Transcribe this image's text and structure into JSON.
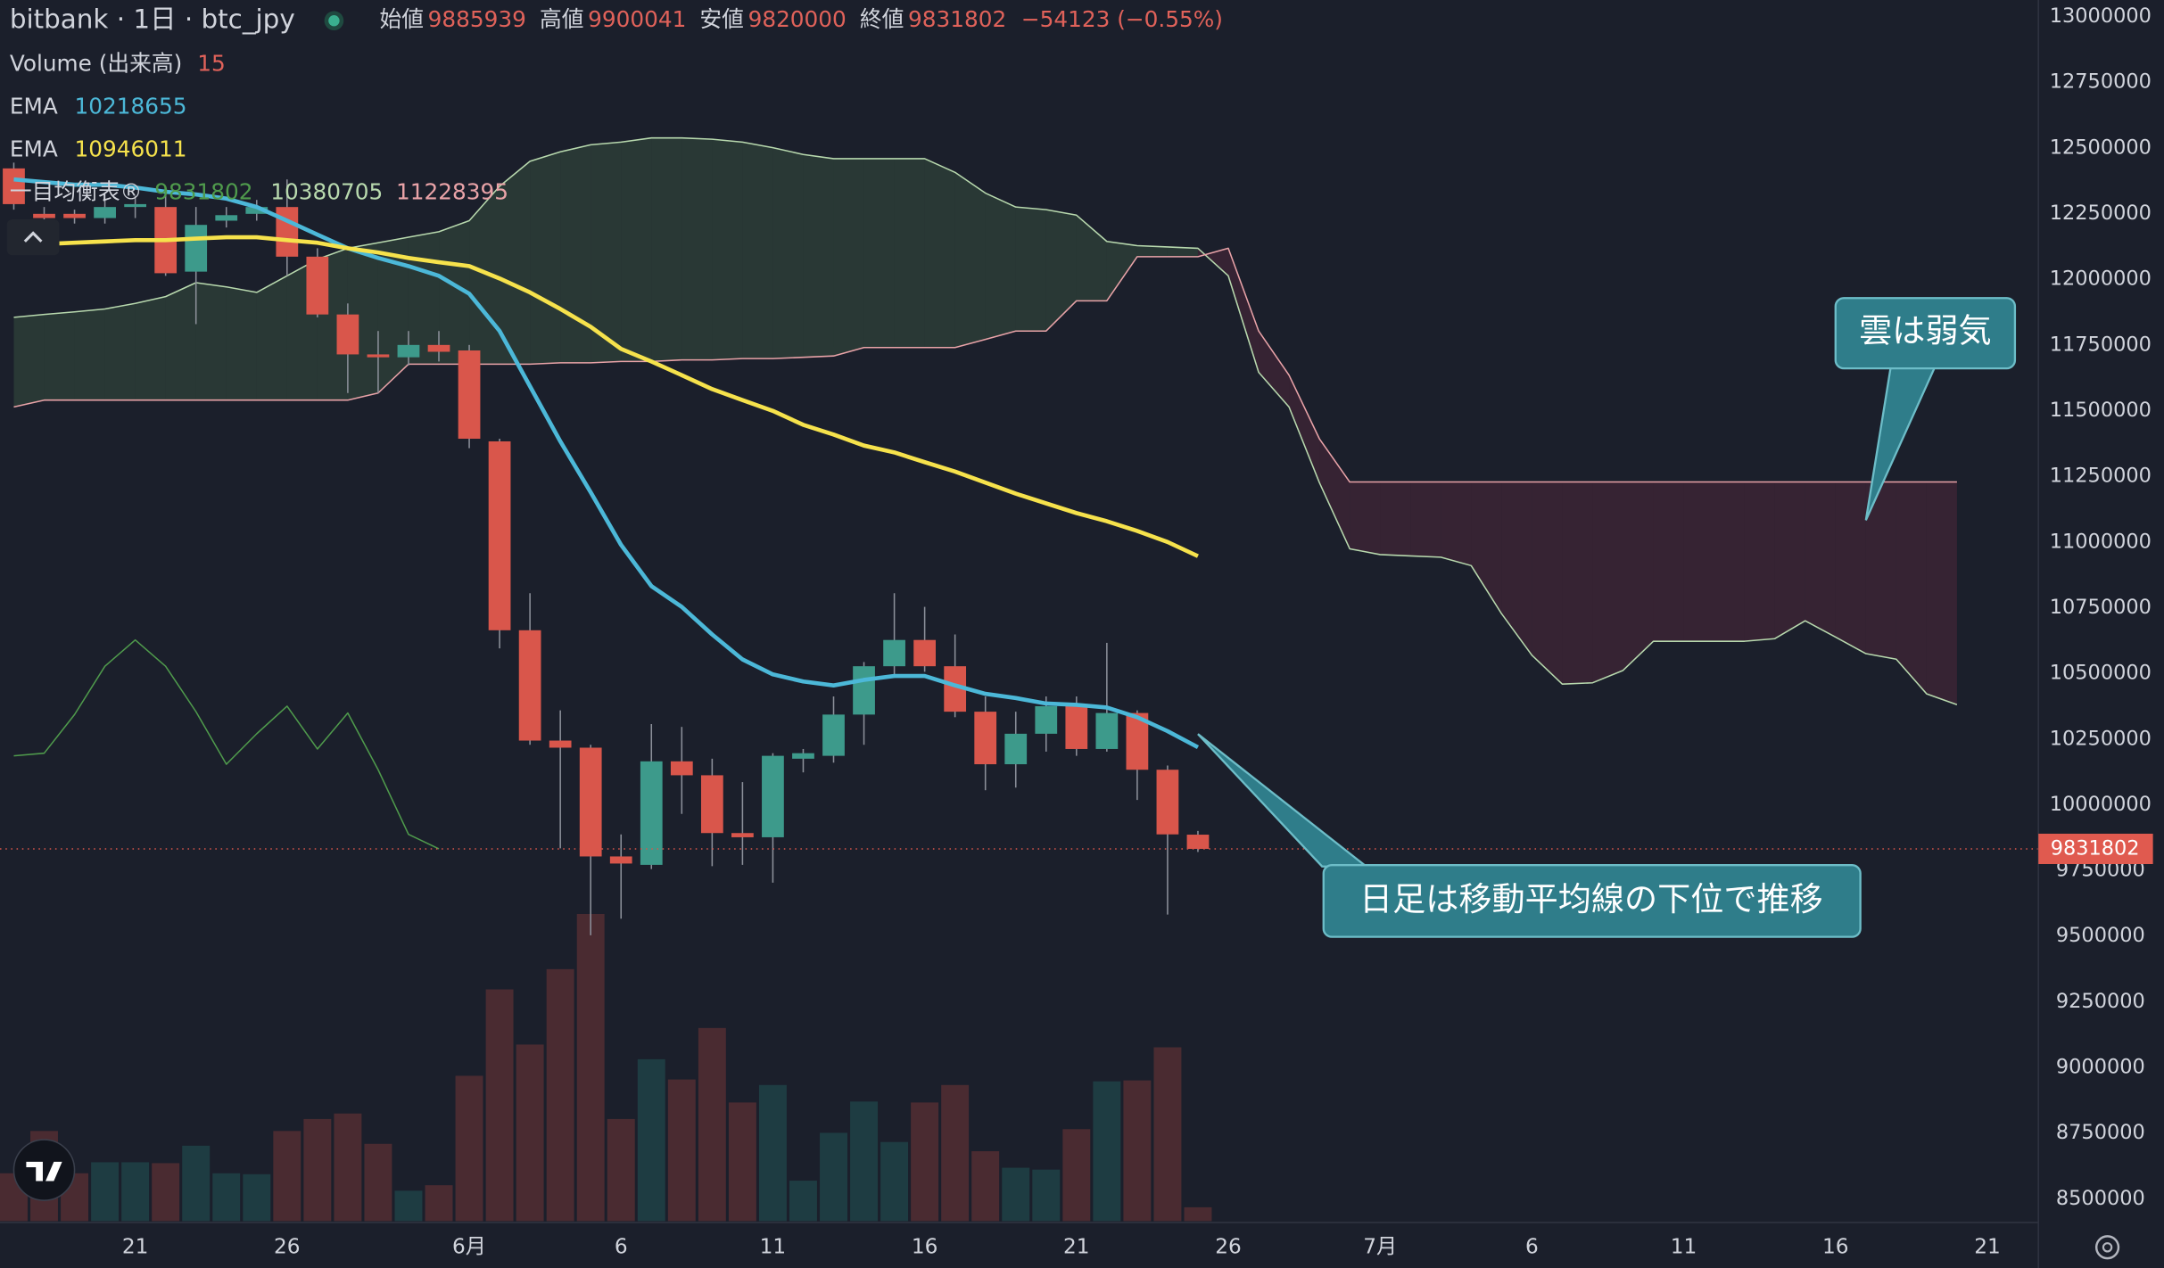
{
  "chart_data": {
    "type": "candlestick",
    "title": "bitbank · 1日 · btc_jpy",
    "legend_labels": {
      "open": "始値",
      "high": "高値",
      "low": "安値",
      "close": "終値"
    },
    "change": "−54123 (−0.55%)",
    "categories": [
      null,
      null,
      null,
      null,
      "21",
      null,
      null,
      null,
      null,
      "26",
      null,
      null,
      null,
      null,
      null,
      "6月",
      null,
      null,
      null,
      null,
      "6",
      null,
      null,
      null,
      null,
      "11",
      null,
      null,
      null,
      null,
      "16",
      null,
      null,
      null,
      null,
      "21",
      null,
      null,
      null,
      null,
      "26",
      null,
      null,
      null,
      null,
      "7月",
      null,
      null,
      null,
      null,
      "6",
      null,
      null,
      null,
      null,
      "11",
      null,
      null,
      null,
      null,
      "16",
      null,
      null,
      null,
      null,
      "21"
    ],
    "open": [
      12422000,
      12249000,
      12249000,
      12233000,
      12275000,
      12275000,
      12029000,
      12223000,
      12249000,
      12275000,
      12086000,
      11866000,
      11714000,
      11703000,
      11750000,
      11729000,
      11383000,
      10664000,
      10244000,
      10217000,
      9803000,
      9771000,
      10165000,
      10112000,
      9892000,
      9876000,
      10175000,
      10186000,
      10343000,
      10527000,
      10627000,
      10527000,
      10354000,
      10154000,
      10270000,
      10375000,
      10212000,
      10349000,
      10133000,
      9885939,
      null,
      null,
      null,
      null,
      null,
      null,
      null,
      null,
      null,
      null,
      null,
      null,
      null,
      null,
      null,
      null,
      null,
      null,
      null,
      null,
      null,
      null,
      null,
      null,
      null,
      null
    ],
    "high": [
      12444000,
      12275000,
      12265000,
      12302000,
      12317000,
      12328000,
      12275000,
      12275000,
      12302000,
      12380000,
      12118000,
      11908000,
      11803000,
      11803000,
      11803000,
      11750000,
      11393000,
      10805000,
      10359000,
      10228000,
      9887000,
      10307000,
      10296000,
      10175000,
      10086000,
      10196000,
      10212000,
      10412000,
      10543000,
      10805000,
      10753000,
      10648000,
      10412000,
      10354000,
      10412000,
      10412000,
      10616000,
      10359000,
      10149000,
      9900041,
      null,
      null,
      null,
      null,
      null,
      null,
      null,
      null,
      null,
      null,
      null,
      null,
      null,
      null,
      null,
      null,
      null,
      null,
      null,
      null,
      null,
      null,
      null,
      null,
      null,
      null
    ],
    "low": [
      12265000,
      12223000,
      12212000,
      12212000,
      12233000,
      12013000,
      11829000,
      12197000,
      12223000,
      12013000,
      11855000,
      11567000,
      11567000,
      11672000,
      11687000,
      11357000,
      10595000,
      10228000,
      9834000,
      9503000,
      9566000,
      9755000,
      9965000,
      9766000,
      9771000,
      9703000,
      10123000,
      10160000,
      10228000,
      10490000,
      10506000,
      10333000,
      10055000,
      10065000,
      10202000,
      10186000,
      10202000,
      10018000,
      9582000,
      9820000,
      null,
      null,
      null,
      null,
      null,
      null,
      null,
      null,
      null,
      null,
      null,
      null,
      null,
      null,
      null,
      null,
      null,
      null,
      null,
      null,
      null,
      null,
      null,
      null,
      null,
      null
    ],
    "close": [
      12286000,
      12233000,
      12233000,
      12275000,
      12286000,
      12023000,
      12207000,
      12244000,
      12275000,
      12086000,
      11866000,
      11714000,
      11703000,
      11750000,
      11724000,
      11393000,
      10664000,
      10244000,
      10217000,
      9803000,
      9776000,
      10165000,
      10112000,
      9892000,
      9876000,
      10186000,
      10196000,
      10343000,
      10527000,
      10627000,
      10527000,
      10354000,
      10154000,
      10270000,
      10375000,
      10212000,
      10349000,
      10133000,
      9887000,
      9831802,
      null,
      null,
      null,
      null,
      null,
      null,
      null,
      null,
      null,
      null,
      null,
      null,
      null,
      null,
      null,
      null,
      null,
      null,
      null,
      null,
      null,
      null,
      null,
      null,
      null,
      null
    ],
    "up_color": "#3d9a8b",
    "down_color": "#d9564b",
    "ylim": [
      8415000,
      13063000
    ],
    "yticks": [
      13000000,
      12750000,
      12500000,
      12250000,
      12000000,
      11750000,
      11500000,
      11250000,
      11000000,
      10750000,
      10500000,
      10250000,
      10000000,
      9750000,
      9500000,
      9250000,
      9000000,
      8750000,
      8500000
    ],
    "grid": false,
    "volume": {
      "name": "Volume (出来高)",
      "vlim": [
        0,
        1328
      ],
      "up_color": "#1e3c42",
      "down_color": "#4a2b31",
      "values": [
        52,
        98,
        52,
        64,
        64,
        63,
        82,
        52,
        51,
        98,
        111,
        117,
        84,
        33,
        39,
        158,
        252,
        192,
        274,
        334,
        111,
        176,
        154,
        210,
        129,
        148,
        44,
        96,
        130,
        86,
        129,
        148,
        76,
        58,
        56,
        100,
        152,
        153,
        189,
        15,
        null,
        null,
        null,
        null,
        null,
        null,
        null,
        null,
        null,
        null,
        null,
        null,
        null,
        null,
        null,
        null,
        null,
        null,
        null,
        null,
        null,
        null,
        null,
        null,
        null,
        null
      ]
    },
    "ema": [
      {
        "name": "EMA",
        "color": "#4cb8d8",
        "values": [
          12380000,
          12370000,
          12360000,
          12360000,
          12349000,
          12333000,
          12323000,
          12307000,
          12275000,
          12223000,
          12170000,
          12118000,
          12081000,
          12050000,
          12013000,
          11945000,
          11803000,
          11593000,
          11383000,
          11189000,
          10989000,
          10832000,
          10753000,
          10648000,
          10553000,
          10496000,
          10469000,
          10454000,
          10475000,
          10490000,
          10490000,
          10454000,
          10422000,
          10406000,
          10385000,
          10380000,
          10370000,
          10333000,
          10280000,
          10218655,
          null,
          null,
          null,
          null,
          null,
          null,
          null,
          null,
          null,
          null,
          null,
          null,
          null,
          null,
          null,
          null,
          null,
          null,
          null,
          null,
          null,
          null,
          null,
          null,
          null,
          null
        ]
      },
      {
        "name": "EMA",
        "color": "#f6e24c",
        "values": [
          12128000,
          12134000,
          12139000,
          12144000,
          12149000,
          12149000,
          12155000,
          12160000,
          12160000,
          12149000,
          12139000,
          12118000,
          12102000,
          12081000,
          12065000,
          12050000,
          12003000,
          11950000,
          11887000,
          11819000,
          11735000,
          11687000,
          11635000,
          11582000,
          11540000,
          11499000,
          11446000,
          11409000,
          11367000,
          11341000,
          11304000,
          11268000,
          11226000,
          11184000,
          11147000,
          11110000,
          11079000,
          11042000,
          11000000,
          10946011,
          null,
          null,
          null,
          null,
          null,
          null,
          null,
          null,
          null,
          null,
          null,
          null,
          null,
          null,
          null,
          null,
          null,
          null,
          null,
          null,
          null,
          null,
          null,
          null,
          null,
          null
        ]
      }
    ],
    "ichimoku": {
      "name": "一目均衡表®",
      "lagging": {
        "color": "#4f9a4c",
        "values": [
          10186000,
          10196000,
          10343000,
          10527000,
          10627000,
          10527000,
          10354000,
          10154000,
          10270000,
          10375000,
          10212000,
          10349000,
          10133000,
          9887000,
          9831802,
          null,
          null,
          null,
          null,
          null,
          null,
          null,
          null,
          null,
          null,
          null,
          null,
          null,
          null,
          null,
          null,
          null,
          null,
          null,
          null,
          null,
          null,
          null,
          null,
          null,
          null,
          null,
          null,
          null,
          null,
          null,
          null,
          null,
          null,
          null,
          null,
          null,
          null,
          null,
          null,
          null,
          null,
          null,
          null,
          null,
          null,
          null,
          null,
          null,
          null,
          null
        ]
      },
      "span_a": {
        "color": "#b8d9ae",
        "values": [
          11855000,
          11866000,
          11876000,
          11887000,
          11908000,
          11934000,
          11987000,
          11971000,
          11950000,
          12013000,
          12076000,
          12118000,
          12139000,
          12160000,
          12181000,
          12223000,
          12354000,
          12449000,
          12485000,
          12512000,
          12522000,
          12538000,
          12538000,
          12533000,
          12522000,
          12501000,
          12475000,
          12459000,
          12459000,
          12459000,
          12459000,
          12407000,
          12328000,
          12275000,
          12265000,
          12244000,
          12144000,
          12128000,
          12123000,
          12118000,
          12013000,
          11646000,
          11514000,
          11226000,
          10974000,
          10952000,
          10947000,
          10942000,
          10910000,
          10727000,
          10569000,
          10459000,
          10464000,
          10511000,
          10622000,
          10622000,
          10622000,
          10622000,
          10632000,
          10700000,
          10638000,
          10575000,
          10554000,
          10422000,
          10380705,
          null
        ]
      },
      "span_b": {
        "color": "#e9a3a8",
        "values": [
          11514000,
          11540000,
          11540000,
          11540000,
          11540000,
          11540000,
          11540000,
          11540000,
          11540000,
          11540000,
          11540000,
          11540000,
          11567000,
          11677000,
          11677000,
          11677000,
          11677000,
          11677000,
          11682000,
          11682000,
          11687000,
          11687000,
          11693000,
          11693000,
          11698000,
          11698000,
          11703000,
          11708000,
          11740000,
          11740000,
          11740000,
          11740000,
          11771000,
          11803000,
          11803000,
          11918000,
          11918000,
          12086000,
          12086000,
          12086000,
          12118000,
          11803000,
          11635000,
          11393000,
          11228395,
          11228395,
          11228395,
          11228395,
          11228395,
          11228395,
          11228395,
          11228395,
          11228395,
          11228395,
          11228395,
          11228395,
          11228395,
          11228395,
          11228395,
          11228395,
          11228395,
          11228395,
          11228395,
          11228395,
          11228395,
          null
        ]
      },
      "cloud_up": "rgba(70,110,75,0.32)",
      "cloud_down": "rgba(120,45,70,0.30)"
    },
    "annotations": [
      "雲は弱気",
      "日足は移動平均線の下位で推移"
    ]
  }
}
